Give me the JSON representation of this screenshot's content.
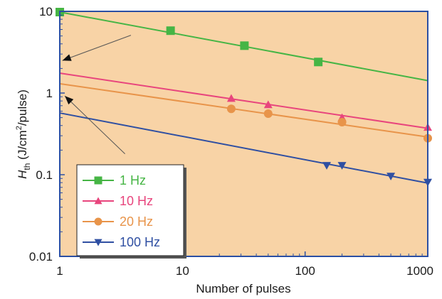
{
  "chart_data": {
    "type": "line",
    "xlabel": "Number of pulses",
    "ylabel_main": "H",
    "ylabel_sub": "th",
    "ylabel_unit_pre": " (J/cm",
    "ylabel_unit_sup": "2",
    "ylabel_unit_post": "/pulse)",
    "xscale": "log",
    "yscale": "log",
    "xlim": [
      1,
      1000
    ],
    "ylim": [
      0.01,
      10
    ],
    "xticks": [
      {
        "value": 1,
        "label": "1"
      },
      {
        "value": 10,
        "label": "10"
      },
      {
        "value": 100,
        "label": "100"
      },
      {
        "value": 1000,
        "label": "1000"
      }
    ],
    "yticks": [
      {
        "value": 0.01,
        "label": "0.01"
      },
      {
        "value": 0.1,
        "label": "0.1"
      },
      {
        "value": 1,
        "label": "1"
      },
      {
        "value": 10,
        "label": "10"
      }
    ],
    "background_color": "#f8d3a6",
    "frame_color": "#2b4fa3",
    "legend_position": "bottom-left",
    "series": [
      {
        "name": "1 Hz",
        "color": "#46b545",
        "marker": "square",
        "points": [
          [
            1,
            9.8
          ],
          [
            8,
            5.8
          ],
          [
            32,
            3.8
          ],
          [
            128,
            2.4
          ]
        ],
        "fit": [
          [
            1,
            9.8
          ],
          [
            1000,
            1.42
          ]
        ]
      },
      {
        "name": "10 Hz",
        "color": "#e8457d",
        "marker": "triangle-up",
        "points": [
          [
            25,
            0.86
          ],
          [
            50,
            0.72
          ],
          [
            200,
            0.5
          ],
          [
            1000,
            0.38
          ]
        ],
        "fit": [
          [
            1,
            1.75
          ],
          [
            1000,
            0.37
          ]
        ]
      },
      {
        "name": "20 Hz",
        "color": "#e8944a",
        "marker": "circle",
        "points": [
          [
            25,
            0.64
          ],
          [
            50,
            0.56
          ],
          [
            200,
            0.44
          ],
          [
            1000,
            0.28
          ]
        ],
        "fit": [
          [
            1,
            1.3
          ],
          [
            1000,
            0.29
          ]
        ]
      },
      {
        "name": "100 Hz",
        "color": "#2f4fa2",
        "marker": "triangle-down",
        "points": [
          [
            150,
            0.13
          ],
          [
            200,
            0.13
          ],
          [
            500,
            0.096
          ],
          [
            1000,
            0.081
          ]
        ],
        "fit": [
          [
            1,
            0.57
          ],
          [
            1000,
            0.079
          ]
        ]
      }
    ],
    "annotations": [
      {
        "type": "arrow",
        "from": [
          3.8,
          5.1
        ],
        "to": [
          1.05,
          2.5
        ]
      },
      {
        "type": "arrow",
        "from": [
          3.4,
          0.18
        ],
        "to": [
          1.1,
          0.92
        ]
      }
    ]
  }
}
